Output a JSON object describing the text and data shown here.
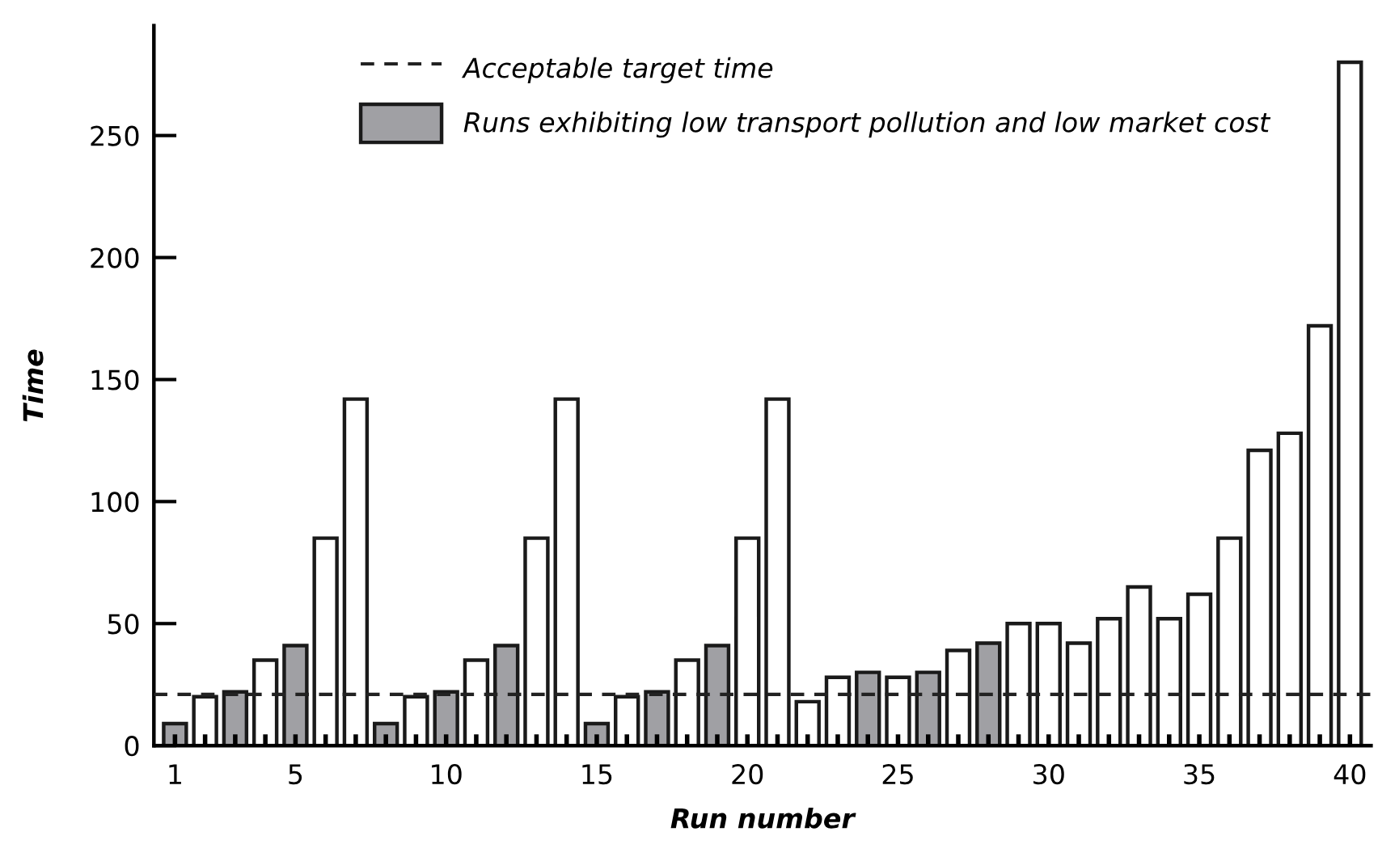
{
  "chart_data": {
    "type": "bar",
    "xlabel": "Run number",
    "ylabel": "Time",
    "categories": [
      "1",
      null,
      null,
      null,
      "5",
      null,
      null,
      null,
      null,
      "10",
      null,
      null,
      null,
      null,
      "15",
      null,
      null,
      null,
      null,
      "20",
      null,
      null,
      null,
      null,
      "25",
      null,
      null,
      null,
      null,
      "30",
      null,
      null,
      null,
      null,
      "35",
      null,
      null,
      null,
      null,
      "40"
    ],
    "series": [
      {
        "name": "Runs exhibiting low transport pollution and low market cost",
        "color": "#a0a0a4",
        "values": [
          9,
          null,
          22,
          null,
          41,
          null,
          null,
          9,
          null,
          22,
          null,
          41,
          null,
          null,
          9,
          null,
          22,
          null,
          41,
          null,
          null,
          null,
          null,
          30,
          null,
          30,
          null,
          42,
          null,
          null,
          null,
          null,
          null,
          null,
          null,
          null,
          null,
          null,
          null,
          null
        ]
      },
      {
        "color": "#ffffff",
        "values": [
          null,
          20,
          null,
          35,
          null,
          85,
          142,
          null,
          20,
          null,
          35,
          null,
          85,
          142,
          null,
          20,
          null,
          35,
          null,
          85,
          142,
          18,
          28,
          null,
          28,
          null,
          39,
          null,
          50,
          50,
          42,
          52,
          65,
          52,
          62,
          85,
          121,
          128,
          172,
          280
        ]
      }
    ],
    "ylim": [
      0,
      295
    ],
    "yticks": [
      0,
      50,
      100,
      150,
      200,
      250
    ],
    "ref_lines": [
      {
        "axis": "y",
        "value": 21,
        "label": "Acceptable target time",
        "line_style": "dashed",
        "color": "#222222"
      }
    ],
    "legend": "top",
    "grid": false
  }
}
